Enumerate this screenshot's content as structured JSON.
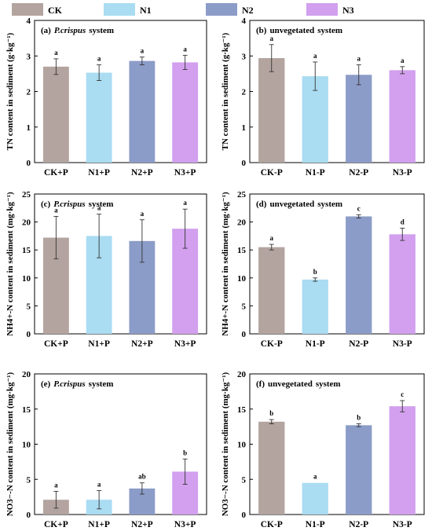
{
  "colors": {
    "CK": "#b3a49f",
    "N1": "#aadcf2",
    "N2": "#8c9cc8",
    "N3": "#d2a0ee"
  },
  "legend": [
    {
      "key": "CK",
      "label": "CK"
    },
    {
      "key": "N1",
      "label": "N1"
    },
    {
      "key": "N2",
      "label": "N2"
    },
    {
      "key": "N3",
      "label": "N3"
    }
  ],
  "chart_data": [
    {
      "type": "bar",
      "panel": "a",
      "title_prefix": "(a)",
      "title_main": "P.crispus",
      "title_suffix": "system",
      "title_italic": true,
      "ylabel": "TN content in sediment (g·kg⁻¹)",
      "ylim": [
        0,
        4
      ],
      "yticks": [
        0,
        1,
        2,
        3,
        4
      ],
      "categories": [
        "CK+P",
        "N1+P",
        "N2+P",
        "N3+P"
      ],
      "values": [
        2.7,
        2.53,
        2.86,
        2.82
      ],
      "errors": [
        0.22,
        0.22,
        0.11,
        0.2
      ],
      "significance": [
        "a",
        "a",
        "a",
        "a"
      ]
    },
    {
      "type": "bar",
      "panel": "b",
      "title_prefix": "(b)",
      "title_main": "unvegetated",
      "title_suffix": "system",
      "title_italic": false,
      "ylabel": "TN content in sediment (g·kg⁻¹)",
      "ylim": [
        0,
        4
      ],
      "yticks": [
        0,
        1,
        2,
        3,
        4
      ],
      "categories": [
        "CK-P",
        "N1-P",
        "N2-P",
        "N3-P"
      ],
      "values": [
        2.94,
        2.43,
        2.47,
        2.6
      ],
      "errors": [
        0.38,
        0.4,
        0.28,
        0.1
      ],
      "significance": [
        "a",
        "a",
        "a",
        "a"
      ]
    },
    {
      "type": "bar",
      "panel": "c",
      "title_prefix": "(c)",
      "title_main": "P.crispus",
      "title_suffix": "system",
      "title_italic": true,
      "ylabel": "NH4+-N content in sediment (mg·kg⁻¹)",
      "ylabel_sup": "+",
      "ylabel_sub": "4",
      "ylim": [
        0,
        25
      ],
      "yticks": [
        0,
        5,
        10,
        15,
        20,
        25
      ],
      "categories": [
        "CK+P",
        "N1+P",
        "N2+P",
        "N3+P"
      ],
      "values": [
        17.2,
        17.5,
        16.6,
        18.8
      ],
      "errors": [
        3.8,
        3.9,
        3.8,
        3.5
      ],
      "significance": [
        "a",
        "a",
        "a",
        "a"
      ]
    },
    {
      "type": "bar",
      "panel": "d",
      "title_prefix": "(d)",
      "title_main": "unvegetated",
      "title_suffix": "system",
      "title_italic": false,
      "ylabel": "NH4+-N content in sediment (mg·kg⁻¹)",
      "ylim": [
        0,
        25
      ],
      "yticks": [
        0,
        5,
        10,
        15,
        20,
        25
      ],
      "categories": [
        "CK-P",
        "N1-P",
        "N2-P",
        "N3-P"
      ],
      "values": [
        15.5,
        9.7,
        21.0,
        17.8
      ],
      "errors": [
        0.5,
        0.3,
        0.3,
        1.1
      ],
      "significance": [
        "a",
        "b",
        "c",
        "d"
      ]
    },
    {
      "type": "bar",
      "panel": "e",
      "title_prefix": "(e)",
      "title_main": "P.crispus",
      "title_suffix": "system",
      "title_italic": true,
      "ylabel": "NO3−-N content in sediment (mg·kg⁻¹)",
      "ylim": [
        0,
        20
      ],
      "yticks": [
        0,
        5,
        10,
        15,
        20
      ],
      "categories": [
        "CK+P",
        "N1+P",
        "N2+P",
        "N3+P"
      ],
      "values": [
        2.1,
        2.1,
        3.7,
        6.1
      ],
      "errors": [
        1.2,
        1.3,
        0.8,
        1.8
      ],
      "significance": [
        "a",
        "a",
        "ab",
        "b"
      ]
    },
    {
      "type": "bar",
      "panel": "f",
      "title_prefix": "(f)",
      "title_main": "unvegetated",
      "title_suffix": "system",
      "title_italic": false,
      "ylabel": "NO3−-N content in sediment (mg·kg⁻¹)",
      "ylim": [
        0,
        20
      ],
      "yticks": [
        0,
        5,
        10,
        15,
        20
      ],
      "categories": [
        "CK-P",
        "N1-P",
        "N2-P",
        "N3-P"
      ],
      "values": [
        13.2,
        4.5,
        12.7,
        15.4
      ],
      "errors": [
        0.3,
        0.0,
        0.2,
        0.8
      ],
      "significance": [
        "b",
        "a",
        "b",
        "c"
      ]
    }
  ]
}
